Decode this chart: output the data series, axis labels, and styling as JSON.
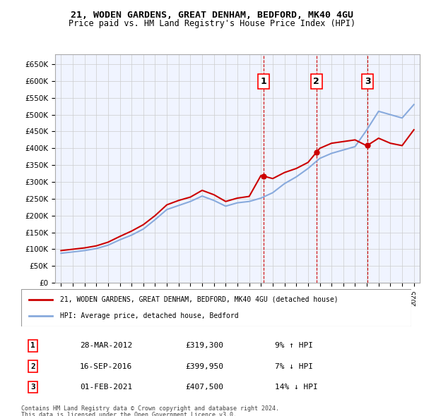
{
  "title1": "21, WODEN GARDENS, GREAT DENHAM, BEDFORD, MK40 4GU",
  "title2": "Price paid vs. HM Land Registry's House Price Index (HPI)",
  "legend_red": "21, WODEN GARDENS, GREAT DENHAM, BEDFORD, MK40 4GU (detached house)",
  "legend_blue": "HPI: Average price, detached house, Bedford",
  "footer1": "Contains HM Land Registry data © Crown copyright and database right 2024.",
  "footer2": "This data is licensed under the Open Government Licence v3.0.",
  "transactions": [
    {
      "label": "1",
      "date": "28-MAR-2012",
      "price": 319300,
      "pct": "9%",
      "dir": "↑",
      "x_year": 2012.23
    },
    {
      "label": "2",
      "date": "16-SEP-2016",
      "price": 399950,
      "pct": "7%",
      "dir": "↓",
      "x_year": 2016.71
    },
    {
      "label": "3",
      "date": "01-FEB-2021",
      "price": 407500,
      "pct": "14%",
      "dir": "↓",
      "x_year": 2021.08
    }
  ],
  "hpi_years": [
    1995,
    1996,
    1997,
    1998,
    1999,
    2000,
    2001,
    2002,
    2003,
    2004,
    2005,
    2006,
    2007,
    2008,
    2009,
    2010,
    2011,
    2012,
    2013,
    2014,
    2015,
    2016,
    2017,
    2018,
    2019,
    2020,
    2021,
    2022,
    2023,
    2024,
    2025
  ],
  "hpi_values": [
    88000,
    92000,
    96000,
    102000,
    112000,
    128000,
    142000,
    160000,
    188000,
    218000,
    230000,
    242000,
    258000,
    245000,
    228000,
    238000,
    242000,
    252000,
    268000,
    295000,
    315000,
    340000,
    370000,
    385000,
    395000,
    405000,
    455000,
    510000,
    500000,
    490000,
    530000
  ],
  "red_years": [
    1995,
    1996,
    1997,
    1998,
    1999,
    2000,
    2001,
    2002,
    2003,
    2004,
    2005,
    2006,
    2007,
    2008,
    2009,
    2010,
    2011,
    2012,
    2013,
    2014,
    2015,
    2016,
    2017,
    2018,
    2019,
    2020,
    2021,
    2022,
    2023,
    2024,
    2025
  ],
  "red_values": [
    96000,
    100000,
    104000,
    110000,
    121000,
    138000,
    154000,
    173000,
    200000,
    232000,
    245000,
    255000,
    275000,
    262000,
    242000,
    252000,
    257000,
    319300,
    310000,
    328000,
    340000,
    358000,
    399950,
    415000,
    420000,
    425000,
    407500,
    430000,
    415000,
    408000,
    455000
  ],
  "ylim": [
    0,
    680000
  ],
  "xlim_start": 1995,
  "xlim_end": 2025.5,
  "background_color": "#f0f4ff",
  "grid_color": "#cccccc",
  "red_color": "#cc0000",
  "blue_color": "#88aadd"
}
